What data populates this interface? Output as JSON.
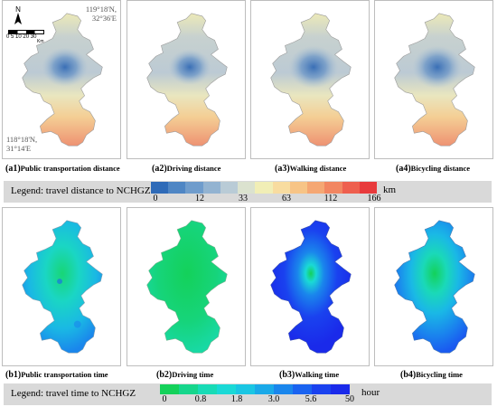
{
  "coords": {
    "ne_lon": "119°18'N,",
    "ne_lat": "32°36'E",
    "sw_lon": "118°18'N,",
    "sw_lat": "31°14'E"
  },
  "north_label": "N",
  "scalebar": {
    "ticks": [
      "0",
      "5",
      "10",
      "20",
      "30"
    ],
    "unit": "Km"
  },
  "distance_row": {
    "captions": [
      {
        "tag": "(a1)",
        "text": "Public transportation distance"
      },
      {
        "tag": "(a2)",
        "text": "Driving distance"
      },
      {
        "tag": "(a3)",
        "text": "Walking distance"
      },
      {
        "tag": "(a4)",
        "text": "Bicycling distance"
      }
    ],
    "legend_title": "Legend: travel distance to NCHGZ",
    "ticks": [
      "0",
      "12",
      "33",
      "63",
      "112",
      "166"
    ],
    "unit": "km",
    "colors": [
      "#2f6bb8",
      "#4f86c4",
      "#6f9ccc",
      "#93b3d1",
      "#b9cbd6",
      "#dbe2cf",
      "#f1eeb6",
      "#f8dca0",
      "#f7c486",
      "#f5a773",
      "#f28661",
      "#ee5f4e",
      "#e83a3c"
    ]
  },
  "time_row": {
    "captions": [
      {
        "tag": "(b1)",
        "text": "Public transportation time"
      },
      {
        "tag": "(b2)",
        "text": "Driving time"
      },
      {
        "tag": "(b3)",
        "text": "Walking time"
      },
      {
        "tag": "(b4)",
        "text": "Bicycling time"
      }
    ],
    "legend_title": "Legend:  travel time to NCHGZ",
    "ticks": [
      "0",
      "0.8",
      "1.8",
      "3.0",
      "5.6",
      "50"
    ],
    "unit": "hour",
    "colors": [
      "#14d15a",
      "#16d68c",
      "#18dbb6",
      "#1ad9d6",
      "#1ac6e3",
      "#1aa9e8",
      "#1a86ec",
      "#1a63f0",
      "#1a42ef",
      "#1a2aea"
    ]
  }
}
